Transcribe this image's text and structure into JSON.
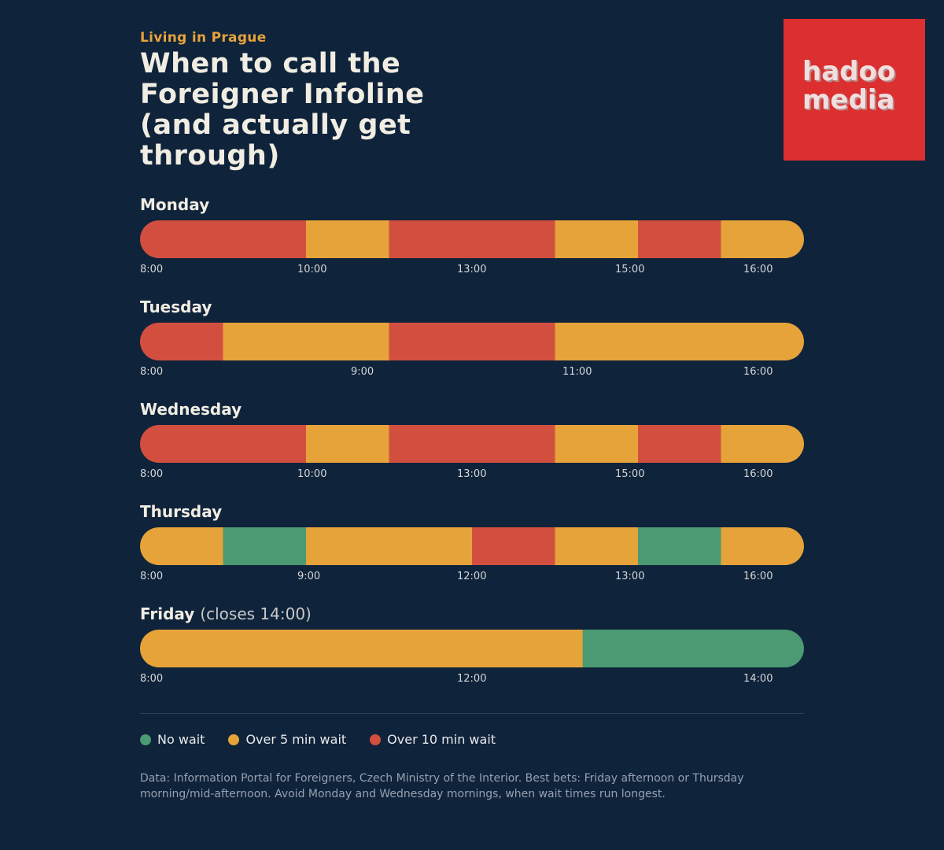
{
  "header": {
    "kicker": "Living in Prague",
    "title": "When to call the Foreigner Infoline (and actually get through)"
  },
  "logo": {
    "line1": "hadoo",
    "line2": "media",
    "color": "#dc2f2f"
  },
  "colors": {
    "no_wait": "#4b9a74",
    "over5": "#e6a33a",
    "over10": "#d24f40"
  },
  "chart_data": {
    "type": "bar",
    "unit": "wait level per time block",
    "days": [
      {
        "name": "Monday",
        "note": "",
        "segments": [
          "over10",
          "over10",
          "over5",
          "over10",
          "over10",
          "over5",
          "over10",
          "over5"
        ],
        "ticks": [
          "8:00",
          "10:00",
          "13:00",
          "15:00",
          "16:00"
        ]
      },
      {
        "name": "Tuesday",
        "note": "",
        "segments": [
          "over10",
          "over5",
          "over5",
          "over10",
          "over10",
          "over5",
          "over5",
          "over5"
        ],
        "ticks": [
          "8:00",
          "9:00",
          "11:00",
          "16:00"
        ]
      },
      {
        "name": "Wednesday",
        "note": "",
        "segments": [
          "over10",
          "over10",
          "over5",
          "over10",
          "over10",
          "over5",
          "over10",
          "over5"
        ],
        "ticks": [
          "8:00",
          "10:00",
          "13:00",
          "15:00",
          "16:00"
        ]
      },
      {
        "name": "Thursday",
        "note": "",
        "segments": [
          "over5",
          "no_wait",
          "over5",
          "over5",
          "over10",
          "over5",
          "no_wait",
          "over5"
        ],
        "ticks": [
          "8:00",
          "9:00",
          "12:00",
          "13:00",
          "16:00"
        ]
      },
      {
        "name": "Friday",
        "note": "(closes 14:00)",
        "segments": [
          "over5",
          "over5",
          "over5",
          "no_wait",
          "no_wait"
        ],
        "segment_fractions": [
          0.2222,
          0.2222,
          0.2222,
          0.1667,
          0.1667
        ],
        "ticks": [
          "8:00",
          "12:00",
          "14:00"
        ]
      }
    ],
    "legend": [
      {
        "key": "no_wait",
        "label": "No wait"
      },
      {
        "key": "over5",
        "label": "Over 5 min wait"
      },
      {
        "key": "over10",
        "label": "Over 10 min wait"
      }
    ]
  },
  "footer": {
    "source": "Data: Information Portal for Foreigners, Czech Ministry of the Interior. Best bets: Friday afternoon or Thursday morning/mid-afternoon. Avoid Monday and Wednesday mornings, when wait times run longest."
  }
}
